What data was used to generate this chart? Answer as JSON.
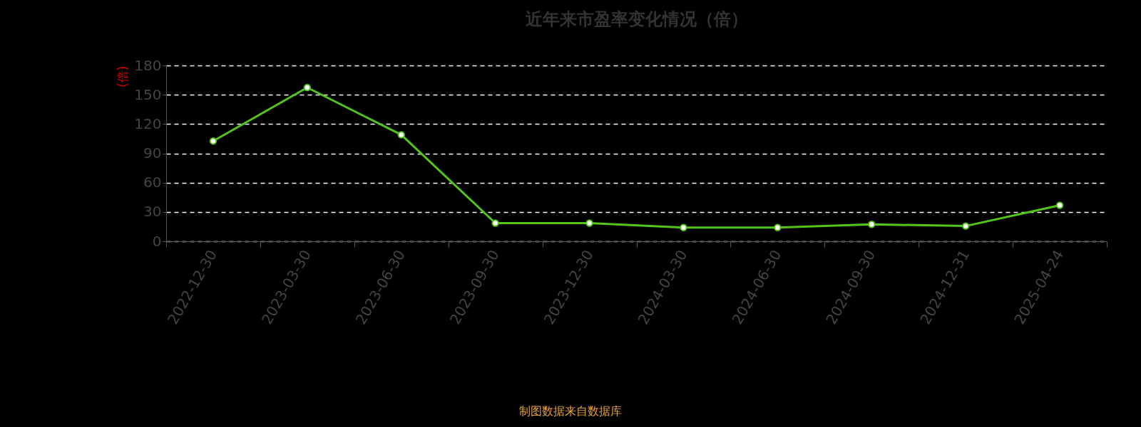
{
  "chart_data": {
    "type": "line",
    "title": "近年来市盈率变化情况（倍）",
    "ylabel": "(倍)",
    "categories": [
      "2022-12-30",
      "2023-03-30",
      "2023-06-30",
      "2023-09-30",
      "2023-12-30",
      "2024-03-30",
      "2024-06-30",
      "2024-09-30",
      "2024-12-31",
      "2025-04-24"
    ],
    "series": [
      {
        "color": "#52c41a",
        "values": [
          102.6,
          157.4,
          109,
          18.6,
          18.6,
          14,
          14,
          17.3,
          15.6,
          36.8
        ]
      }
    ],
    "ylim": [
      0,
      180
    ],
    "yticks": [
      0,
      30,
      60,
      90,
      120,
      150,
      180
    ],
    "grid": "y",
    "marker": "circle",
    "line_style": "solid",
    "annotations": [
      "制图数据来自数据库"
    ]
  }
}
